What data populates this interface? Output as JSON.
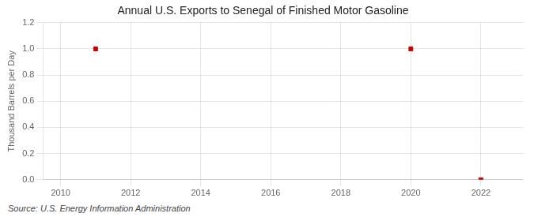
{
  "chart_data": {
    "type": "scatter",
    "title": "Annual U.S. Exports to Senegal of Finished Motor Gasoline",
    "ylabel": "Thousand Barrels per Day",
    "annotations": [
      "Source: U.S. Energy Information Administration"
    ],
    "x": [
      2011,
      2020,
      2022
    ],
    "values": [
      1.0,
      1.0,
      0.0
    ],
    "color": "#cc0000",
    "marker": "square",
    "xlim": [
      2009.5,
      2023.2
    ],
    "ylim": [
      0.0,
      1.2
    ],
    "xticks": [
      2010,
      2012,
      2014,
      2016,
      2018,
      2020,
      2022
    ],
    "yticks": [
      {
        "value": 0.0,
        "label": "0.0"
      },
      0.2,
      0.4,
      0.6,
      0.8,
      {
        "value": 1.0,
        "label": "1.0"
      },
      1.2
    ],
    "grid": true
  }
}
